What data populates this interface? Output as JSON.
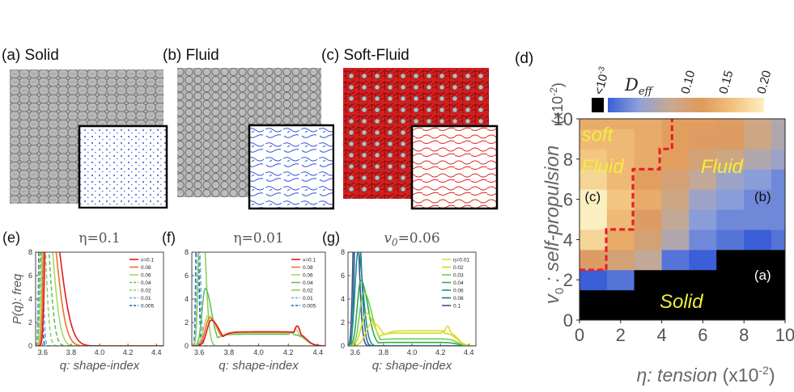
{
  "panels": {
    "a": {
      "letter": "(a)",
      "title": "Solid"
    },
    "b": {
      "letter": "(b)",
      "title": "Fluid"
    },
    "c": {
      "letter": "(c)",
      "title": "Soft-Fluid"
    },
    "d": {
      "letter": "(d)"
    },
    "e": {
      "letter": "(e)"
    },
    "f": {
      "letter": "(f)"
    },
    "g": {
      "letter": "(g)"
    }
  },
  "colors": {
    "cell_gray": "#b8b8b8",
    "cell_red": "#d41e1e",
    "flow_blue": "#3050d8",
    "flow_red": "#e02020",
    "phase_line": "#e8202a",
    "label_yellow": "#f1ef3a"
  },
  "chart_data": [
    {
      "id": "e",
      "type": "line",
      "title": "η=0.1",
      "xlabel": "q: shape-index",
      "ylabel": "P(q): freq",
      "xlim": [
        3.55,
        4.45
      ],
      "ylim": [
        0,
        8
      ],
      "xticks": [
        "3.6",
        "3.8",
        "4.0",
        "4.2",
        "4.4"
      ],
      "yticks": [
        "0",
        "2",
        "4",
        "6",
        "8"
      ],
      "legend_position": "upper-right",
      "series": [
        {
          "name": "v=0.1",
          "color": "#e31a1c",
          "dashed": false,
          "peak_x": 3.63,
          "peak_y": 14,
          "width_left": 0.02,
          "width_right": 0.12,
          "tail": 0
        },
        {
          "name": "0.08",
          "color": "#f46d2b",
          "dashed": false,
          "peak_x": 3.62,
          "peak_y": 14,
          "width_left": 0.02,
          "width_right": 0.1,
          "tail": 0
        },
        {
          "name": "0.06",
          "color": "#a6d96a",
          "dashed": false,
          "peak_x": 3.61,
          "peak_y": 14,
          "width_left": 0.02,
          "width_right": 0.08,
          "tail": 0
        },
        {
          "name": "0.04",
          "color": "#66bd63",
          "dashed": true,
          "peak_x": 3.6,
          "peak_y": 14,
          "width_left": 0.02,
          "width_right": 0.06,
          "tail": 0
        },
        {
          "name": "0.02",
          "color": "#91cf60",
          "dashed": true,
          "peak_x": 3.59,
          "peak_y": 14,
          "width_left": 0.015,
          "width_right": 0.04,
          "tail": 0
        },
        {
          "name": "0.01",
          "color": "#6baed6",
          "dashed": true,
          "peak_x": 3.585,
          "peak_y": 14,
          "width_left": 0.01,
          "width_right": 0.02,
          "tail": 0
        },
        {
          "name": "0.005",
          "color": "#2166ac",
          "dashed": true,
          "peak_x": 3.58,
          "peak_y": 14,
          "width_left": 0.01,
          "width_right": 0.015,
          "tail": 0
        }
      ]
    },
    {
      "id": "f",
      "type": "line",
      "title": "η=0.01",
      "xlabel": "q: shape-index",
      "ylabel": "",
      "xlim": [
        3.55,
        4.45
      ],
      "ylim": [
        0,
        8
      ],
      "xticks": [
        "3.6",
        "3.8",
        "4.0",
        "4.2",
        "4.4"
      ],
      "yticks": [
        "0",
        "2",
        "4",
        "6",
        "8"
      ],
      "legend_position": "upper-right",
      "series": [
        {
          "name": "v=0.1",
          "color": "#e31a1c",
          "dashed": false,
          "peak_x": 3.68,
          "peak_y": 2.2,
          "width_left": 0.04,
          "width_right": 0.08,
          "tail": 1.2,
          "bump_x": 4.26,
          "bump_y": 1.7
        },
        {
          "name": "0.08",
          "color": "#f46d2b",
          "dashed": false,
          "peak_x": 3.67,
          "peak_y": 2.4,
          "width_left": 0.04,
          "width_right": 0.08,
          "tail": 1.2,
          "bump_x": 4.26,
          "bump_y": 1.7
        },
        {
          "name": "0.06",
          "color": "#a6d96a",
          "dashed": false,
          "peak_x": 3.66,
          "peak_y": 2.6,
          "width_left": 0.04,
          "width_right": 0.08,
          "tail": 1.1,
          "bump_x": 4.25,
          "bump_y": 1.4
        },
        {
          "name": "0.04",
          "color": "#66bd63",
          "dashed": false,
          "peak_x": 3.64,
          "peak_y": 4.9,
          "width_left": 0.03,
          "width_right": 0.06,
          "tail": 1.0,
          "bump_x": 4.22,
          "bump_y": 1.2
        },
        {
          "name": "0.02",
          "color": "#91cf60",
          "dashed": false,
          "peak_x": 3.61,
          "peak_y": 14,
          "width_left": 0.02,
          "width_right": 0.04,
          "tail": 0
        },
        {
          "name": "0.01",
          "color": "#6baed6",
          "dashed": true,
          "peak_x": 3.59,
          "peak_y": 14,
          "width_left": 0.01,
          "width_right": 0.02,
          "tail": 0
        },
        {
          "name": "0.005",
          "color": "#2166ac",
          "dashed": true,
          "peak_x": 3.585,
          "peak_y": 14,
          "width_left": 0.01,
          "width_right": 0.015,
          "tail": 0
        }
      ]
    },
    {
      "id": "g",
      "type": "line",
      "title": "v0=0.06",
      "title_symbol": "v",
      "title_subscript": "0",
      "title_value": "=0.06",
      "xlabel": "q: shape-index",
      "ylabel": "",
      "xlim": [
        3.55,
        4.45
      ],
      "ylim": [
        0,
        8
      ],
      "xticks": [
        "3.6",
        "3.8",
        "4.0",
        "4.2",
        "4.4"
      ],
      "yticks": [
        "0",
        "2",
        "4",
        "6",
        "8"
      ],
      "legend_position": "upper-right",
      "series": [
        {
          "name": "η=0.01",
          "color": "#e6d832",
          "dashed": false,
          "peak_x": 3.72,
          "peak_y": 2.0,
          "width_left": 0.06,
          "width_right": 0.1,
          "tail": 1.3,
          "bump_x": 4.25,
          "bump_y": 1.7
        },
        {
          "name": "0.02",
          "color": "#c7e020",
          "dashed": false,
          "peak_x": 3.68,
          "peak_y": 2.8,
          "width_left": 0.05,
          "width_right": 0.08,
          "tail": 1.1,
          "bump_x": 4.22,
          "bump_y": 1.2
        },
        {
          "name": "0.03",
          "color": "#6fcf4b",
          "dashed": false,
          "peak_x": 3.66,
          "peak_y": 4.6,
          "width_left": 0.04,
          "width_right": 0.08,
          "tail": 0.6
        },
        {
          "name": "0.04",
          "color": "#34a853",
          "dashed": false,
          "peak_x": 3.64,
          "peak_y": 5.6,
          "width_left": 0.035,
          "width_right": 0.07,
          "tail": 0.3
        },
        {
          "name": "0.06",
          "color": "#21908c",
          "dashed": false,
          "peak_x": 3.62,
          "peak_y": 8.0,
          "width_left": 0.03,
          "width_right": 0.05,
          "tail": 0
        },
        {
          "name": "0.08",
          "color": "#2c6e8f",
          "dashed": false,
          "peak_x": 3.61,
          "peak_y": 14,
          "width_left": 0.02,
          "width_right": 0.04,
          "tail": 0
        },
        {
          "name": "0.1",
          "color": "#3b528b",
          "dashed": false,
          "peak_x": 3.6,
          "peak_y": 14,
          "width_left": 0.02,
          "width_right": 0.035,
          "tail": 0
        }
      ]
    },
    {
      "id": "d",
      "type": "heatmap",
      "xlabel": "η: tension (x10-2)",
      "xlabel_symbol": "η",
      "xlabel_text": ": tension",
      "xlabel_unit": "(x10",
      "xlabel_exp": "-2",
      "xlabel_close": ")",
      "ylabel": "v0 : self-propulsion (x10-2)",
      "ylabel_symbol": "v",
      "ylabel_sub": "0",
      "ylabel_text": " : self-propulsion",
      "yunit_text": "(x10",
      "yunit_exp": "-2",
      "yunit_close": ")",
      "xlim": [
        0,
        10
      ],
      "ylim": [
        0,
        10
      ],
      "xticks": [
        "0",
        "2",
        "4",
        "6",
        "8",
        "10"
      ],
      "yticks": [
        "0",
        "2",
        "4",
        "6",
        "8",
        "10"
      ],
      "colorbar": {
        "low_label": "<10",
        "low_exp": "-3",
        "title_symbol": "D",
        "title_sub": "eff",
        "ticks": [
          "0.10",
          "0.15",
          "0.20"
        ],
        "low_color": "#000000",
        "stops": [
          "#3a5fd8",
          "#8ea1d8",
          "#c8a98e",
          "#e0995a",
          "#f2c37e",
          "#fbefc0"
        ]
      },
      "grid_x": [
        0,
        1.33,
        2.66,
        4,
        5.33,
        6.66,
        8,
        9.33,
        10.4
      ],
      "grid_y": [
        0,
        0.5,
        1.5,
        2.5,
        3.5,
        4.5,
        5.5,
        6.5,
        7.5,
        8.5,
        9.5,
        10.4
      ],
      "cells": [
        [
          0,
          0,
          0,
          0,
          0,
          0,
          0,
          0
        ],
        [
          0,
          0,
          0,
          0,
          0,
          0,
          0,
          0
        ],
        [
          0.05,
          0.06,
          0,
          0,
          0,
          0,
          0,
          0
        ],
        [
          0.14,
          0.13,
          0.11,
          0.06,
          0.05,
          0,
          0,
          0
        ],
        [
          0.19,
          0.16,
          0.13,
          0.1,
          0.07,
          0.06,
          0.05,
          0.06
        ],
        [
          0.21,
          0.17,
          0.14,
          0.11,
          0.08,
          0.07,
          0.07,
          0.07
        ],
        [
          0.21,
          0.18,
          0.16,
          0.12,
          0.09,
          0.08,
          0.07,
          0.07
        ],
        [
          0.19,
          0.17,
          0.15,
          0.13,
          0.11,
          0.09,
          0.08,
          0.07
        ],
        [
          0.18,
          0.17,
          0.16,
          0.15,
          0.13,
          0.12,
          0.1,
          0.09
        ],
        [
          0.17,
          0.17,
          0.16,
          0.15,
          0.14,
          0.14,
          0.12,
          0.1
        ],
        [
          0.16,
          0.16,
          0.16,
          0.15,
          0.15,
          0.14,
          0.12,
          0.1
        ]
      ],
      "boundary": [
        [
          0,
          2.5
        ],
        [
          1.3,
          2.5
        ],
        [
          1.3,
          4.5
        ],
        [
          2.6,
          4.5
        ],
        [
          2.6,
          7.5
        ],
        [
          3.9,
          7.5
        ],
        [
          3.9,
          8.5
        ],
        [
          4.5,
          8.5
        ],
        [
          4.5,
          10.1
        ]
      ],
      "annotations": [
        {
          "id": "soft-label",
          "text": "soft",
          "x": 0.1,
          "y": 8.9,
          "color": "#f1ef3a",
          "italic": true
        },
        {
          "id": "soft-fluid-label",
          "text": "Fluid",
          "x": 0.1,
          "y": 7.3,
          "color": "#f1ef3a",
          "italic": true
        },
        {
          "id": "fluid-label",
          "text": "Fluid",
          "x": 5.9,
          "y": 7.3,
          "color": "#f1ef3a",
          "italic": true
        },
        {
          "id": "solid-label",
          "text": "Solid",
          "x": 3.9,
          "y": 0.6,
          "color": "#f1ef3a",
          "italic": true
        },
        {
          "id": "marker-c",
          "text": "(c)",
          "x": 0.25,
          "y": 5.9,
          "color": "#111111",
          "italic": false
        },
        {
          "id": "marker-b",
          "text": "(b)",
          "x": 8.5,
          "y": 5.9,
          "color": "#111111",
          "italic": false
        },
        {
          "id": "marker-a",
          "text": "(a)",
          "x": 8.5,
          "y": 2.0,
          "color": "#ffffff",
          "italic": false
        }
      ]
    }
  ]
}
